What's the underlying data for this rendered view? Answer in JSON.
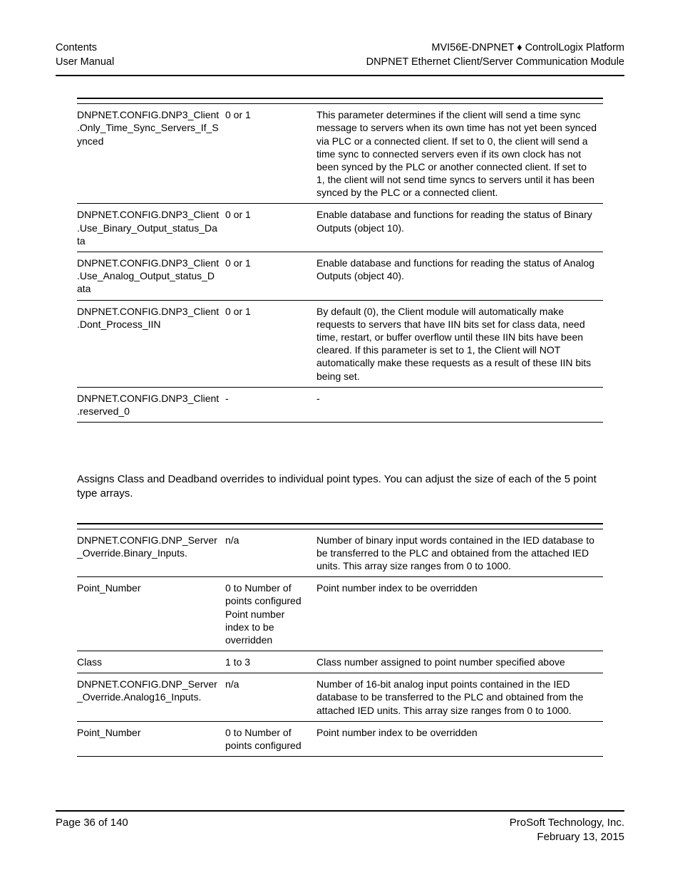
{
  "header": {
    "left_line1": "Contents",
    "left_line2": "User Manual",
    "right_line1": "MVI56E-DNPNET ♦ ControlLogix Platform",
    "right_line2": "DNPNET Ethernet Client/Server Communication Module"
  },
  "table1": {
    "rows": [
      {
        "name": "DNPNET.CONFIG.DNP3_Client.Only_Time_Sync_Servers_If_Synced",
        "range": "0 or 1",
        "desc": "This parameter determines if the client will send a time sync message to servers when its own time has not yet been synced via PLC or a connected client. If set to 0, the client will send a time sync to connected servers even if its own clock has not been synced by the PLC or another connected client. If set to 1, the client will not send time syncs to servers until it has been synced by the PLC or a connected client."
      },
      {
        "name": "DNPNET.CONFIG.DNP3_Client.Use_Binary_Output_status_Data",
        "range": "0 or 1",
        "desc": "Enable database and functions for reading the status of Binary Outputs (object 10)."
      },
      {
        "name": "DNPNET.CONFIG.DNP3_Client.Use_Analog_Output_status_Data",
        "range": "0 or 1",
        "desc": "Enable database and functions for reading the status of Analog Outputs (object 40)."
      },
      {
        "name": "DNPNET.CONFIG.DNP3_Client.Dont_Process_IIN",
        "range": "0 or 1",
        "desc": "By default (0), the Client module will automatically make requests to servers that have IIN bits set for class data, need time, restart, or buffer overflow until these IIN bits have been cleared. If this parameter is set to 1, the Client will NOT automatically make these requests as a result of these IIN bits being set."
      },
      {
        "name": "DNPNET.CONFIG.DNP3_Client.reserved_0",
        "range": "-",
        "desc": "-"
      }
    ]
  },
  "midtext": "Assigns Class and Deadband overrides to individual point types. You can adjust the size of each of the 5 point type arrays.",
  "table2": {
    "rows": [
      {
        "name": "DNPNET.CONFIG.DNP_Server_Override.Binary_Inputs.",
        "range": "n/a",
        "desc": "Number of binary input words contained in the IED database to be transferred to the PLC and obtained from the attached IED units.\nThis array size ranges from 0 to 1000."
      },
      {
        "name": "Point_Number",
        "range": "0 to Number of points configured Point number index to be overridden",
        "desc": "Point number index to be overridden"
      },
      {
        "name": "Class",
        "range": "1 to 3",
        "desc": "Class number assigned to point number specified above"
      },
      {
        "name": "DNPNET.CONFIG.DNP_Server_Override.Analog16_Inputs.",
        "range": "n/a",
        "desc": "Number of 16-bit analog input points contained in the IED database to be transferred to the PLC and obtained from the attached IED units. This array size ranges from 0 to 1000."
      },
      {
        "name": "Point_Number",
        "range": "0 to Number of points configured",
        "desc": "Point number index to be overridden"
      }
    ]
  },
  "footer": {
    "left": "Page 36 of 140",
    "right_line1": "ProSoft Technology, Inc.",
    "right_line2": "February 13, 2015"
  }
}
